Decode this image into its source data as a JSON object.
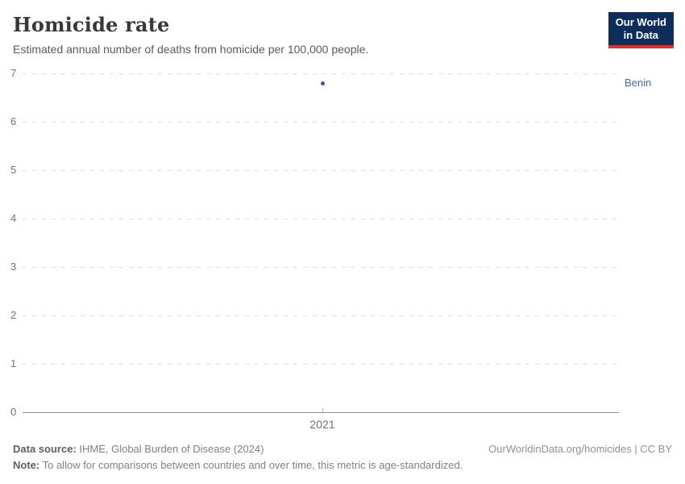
{
  "header": {
    "title": "Homicide rate",
    "subtitle": "Estimated annual number of deaths from homicide per 100,000 people.",
    "logo": {
      "line1": "Our World",
      "line2": "in Data",
      "bg_color": "#0d2e5c",
      "underline_color": "#e0312a"
    }
  },
  "chart_data": {
    "type": "scatter",
    "title": "Homicide rate",
    "xlabel": "",
    "ylabel": "",
    "series": [
      {
        "name": "Benin",
        "x": [
          2021
        ],
        "y": [
          6.8
        ],
        "point_color": "#3d5a8f",
        "label_color": "#4c6a9c"
      }
    ],
    "x_ticks": [
      "2021"
    ],
    "y_ticks": [
      0,
      1,
      2,
      3,
      4,
      5,
      6,
      7
    ],
    "ylim": [
      0,
      7
    ],
    "grid": "horizontal-dashed",
    "legend_position": "right-entity-label"
  },
  "footer": {
    "data_source_label": "Data source:",
    "data_source_value": "IHME, Global Burden of Disease (2024)",
    "note_label": "Note:",
    "note_value": "To allow for comparisons between countries and over time, this metric is age-standardized.",
    "link": "OurWorldinData.org/homicides | CC BY"
  }
}
